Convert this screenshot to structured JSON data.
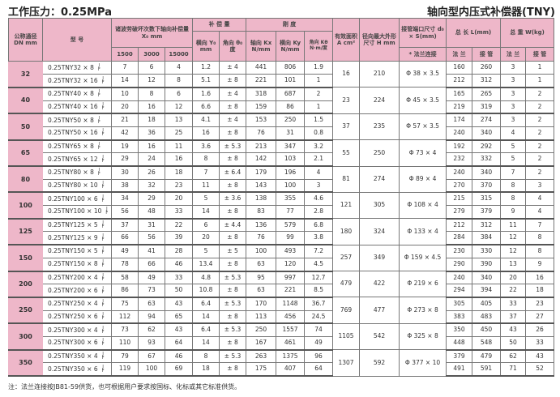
{
  "header": {
    "pressure": "工作压力：0.25MPa",
    "title": "轴向型内压式补偿器(TNY)"
  },
  "columns": {
    "dn": "公称通径 DN mm",
    "model": "型 号",
    "x0": "诸波劳破坏次数下轴向补偿量 X₀ mm",
    "x0_cycles": [
      "1500",
      "3000",
      "15000"
    ],
    "comp": "补 偿 量",
    "y0": "横向 Y₀ mm",
    "theta0": "角向 θ₀ 度",
    "stiff": "刚 度",
    "kx": "轴向 Kx N/mm",
    "ky": "横向 Ky N/mm",
    "ktheta": "角向 Kθ N·m/度",
    "area": "有效面积 A cm²",
    "h": "径向最大外形尺寸 H mm",
    "d0": "接管端口尺寸 d₀ × S(mm)",
    "d0_sub": "* 法兰连接",
    "length": "总 长 L(mm)",
    "weight": "总 重 W(kg)",
    "flange": "法 兰",
    "pipe": "接 管"
  },
  "suffix": {
    "top": "J",
    "bottom": "F"
  },
  "groups": [
    {
      "dn": "32",
      "area": "16",
      "h": "210",
      "d0": "Φ 38 × 3.5",
      "rows": [
        {
          "model": "0.25TNY32 × 8",
          "v": [
            "7",
            "6",
            "4",
            "1.2",
            "± 4",
            "441",
            "806",
            "1.9",
            "160",
            "260",
            "3",
            "1"
          ]
        },
        {
          "model": "0.25TNY32 × 16",
          "v": [
            "14",
            "12",
            "8",
            "5.1",
            "± 8",
            "221",
            "101",
            "1",
            "212",
            "312",
            "3",
            "1"
          ]
        }
      ]
    },
    {
      "dn": "40",
      "area": "23",
      "h": "224",
      "d0": "Φ 45 × 3.5",
      "rows": [
        {
          "model": "0.25TNY40 × 8",
          "v": [
            "10",
            "8",
            "6",
            "1.6",
            "± 4",
            "318",
            "687",
            "2",
            "165",
            "265",
            "3",
            "2"
          ]
        },
        {
          "model": "0.25TNY40 × 16",
          "v": [
            "20",
            "16",
            "12",
            "6.6",
            "± 8",
            "159",
            "86",
            "1",
            "219",
            "319",
            "3",
            "2"
          ]
        }
      ]
    },
    {
      "dn": "50",
      "area": "37",
      "h": "235",
      "d0": "Φ 57 × 3.5",
      "rows": [
        {
          "model": "0.25TNY50 × 8",
          "v": [
            "21",
            "18",
            "13",
            "4.1",
            "± 4",
            "153",
            "250",
            "1.5",
            "174",
            "274",
            "3",
            "2"
          ]
        },
        {
          "model": "0.25TNY50 × 16",
          "v": [
            "42",
            "36",
            "25",
            "16",
            "± 8",
            "76",
            "31",
            "0.8",
            "240",
            "340",
            "4",
            "2"
          ]
        }
      ]
    },
    {
      "dn": "65",
      "area": "55",
      "h": "250",
      "d0": "Φ 73 × 4",
      "rows": [
        {
          "model": "0.25TNY65 × 8",
          "v": [
            "19",
            "16",
            "11",
            "3.6",
            "± 5.3",
            "213",
            "347",
            "3.2",
            "192",
            "292",
            "5",
            "2"
          ]
        },
        {
          "model": "0.25TNY65 × 12",
          "v": [
            "29",
            "24",
            "16",
            "8",
            "± 8",
            "142",
            "103",
            "2.1",
            "232",
            "332",
            "5",
            "2"
          ]
        }
      ]
    },
    {
      "dn": "80",
      "area": "81",
      "h": "274",
      "d0": "Φ 89 × 4",
      "rows": [
        {
          "model": "0.25TNY80 × 8",
          "v": [
            "30",
            "26",
            "18",
            "7",
            "± 6.4",
            "179",
            "196",
            "4",
            "240",
            "340",
            "7",
            "2"
          ]
        },
        {
          "model": "0.25TNY80 × 10",
          "v": [
            "38",
            "32",
            "23",
            "11",
            "± 8",
            "143",
            "100",
            "3",
            "270",
            "370",
            "8",
            "3"
          ]
        }
      ]
    },
    {
      "dn": "100",
      "area": "121",
      "h": "305",
      "d0": "Φ 108 × 4",
      "rows": [
        {
          "model": "0.25TNY100 × 6",
          "v": [
            "34",
            "29",
            "20",
            "5",
            "± 3.6",
            "138",
            "355",
            "4.6",
            "215",
            "315",
            "8",
            "4"
          ]
        },
        {
          "model": "0.25TNY100 × 10",
          "v": [
            "56",
            "48",
            "33",
            "14",
            "± 8",
            "83",
            "77",
            "2.8",
            "279",
            "379",
            "9",
            "4"
          ]
        }
      ]
    },
    {
      "dn": "125",
      "area": "180",
      "h": "324",
      "d0": "Φ 133 × 4",
      "rows": [
        {
          "model": "0.25TNY125 × 5",
          "v": [
            "37",
            "31",
            "22",
            "6",
            "± 4.4",
            "136",
            "579",
            "6.8",
            "212",
            "312",
            "11",
            "7"
          ]
        },
        {
          "model": "0.25TNY125 × 9",
          "v": [
            "66",
            "56",
            "39",
            "20",
            "± 8",
            "76",
            "99",
            "3.8",
            "284",
            "384",
            "12",
            "8"
          ]
        }
      ]
    },
    {
      "dn": "150",
      "area": "257",
      "h": "349",
      "d0": "Φ 159 × 4.5",
      "rows": [
        {
          "model": "0.25TNY150 × 5",
          "v": [
            "49",
            "41",
            "28",
            "5",
            "± 5",
            "100",
            "493",
            "7.2",
            "230",
            "330",
            "12",
            "8"
          ]
        },
        {
          "model": "0.25TNY150 × 8",
          "v": [
            "78",
            "66",
            "46",
            "13.4",
            "± 8",
            "63",
            "120",
            "4.5",
            "290",
            "390",
            "13",
            "9"
          ]
        }
      ]
    },
    {
      "dn": "200",
      "area": "479",
      "h": "422",
      "d0": "Φ 219 × 6",
      "rows": [
        {
          "model": "0.25TNY200 × 4",
          "v": [
            "58",
            "49",
            "33",
            "4.8",
            "± 5.3",
            "95",
            "997",
            "12.7",
            "240",
            "340",
            "20",
            "16"
          ]
        },
        {
          "model": "0.25TNY200 × 6",
          "v": [
            "86",
            "73",
            "50",
            "10.8",
            "± 8",
            "63",
            "221",
            "8.5",
            "294",
            "394",
            "22",
            "18"
          ]
        }
      ]
    },
    {
      "dn": "250",
      "area": "769",
      "h": "477",
      "d0": "Φ 273 × 8",
      "rows": [
        {
          "model": "0.25TNY250 × 4",
          "v": [
            "75",
            "63",
            "43",
            "6.4",
            "± 5.3",
            "170",
            "1148",
            "36.7",
            "305",
            "405",
            "33",
            "23"
          ]
        },
        {
          "model": "0.25TNY250 × 6",
          "v": [
            "112",
            "94",
            "65",
            "14",
            "± 8",
            "113",
            "456",
            "24.5",
            "383",
            "483",
            "37",
            "27"
          ]
        }
      ]
    },
    {
      "dn": "300",
      "area": "1105",
      "h": "542",
      "d0": "Φ 325 × 8",
      "rows": [
        {
          "model": "0.25TNY300 × 4",
          "v": [
            "73",
            "62",
            "43",
            "6.4",
            "± 5.3",
            "250",
            "1557",
            "74",
            "350",
            "450",
            "43",
            "26"
          ]
        },
        {
          "model": "0.25TNY300 × 6",
          "v": [
            "110",
            "93",
            "64",
            "14",
            "± 8",
            "167",
            "461",
            "49",
            "448",
            "548",
            "50",
            "33"
          ]
        }
      ]
    },
    {
      "dn": "350",
      "area": "1307",
      "h": "592",
      "d0": "Φ 377 × 10",
      "rows": [
        {
          "model": "0.25TNY350 × 4",
          "v": [
            "79",
            "67",
            "46",
            "8",
            "± 5.3",
            "263",
            "1375",
            "96",
            "379",
            "479",
            "62",
            "43"
          ]
        },
        {
          "model": "0.25TNY350 × 6",
          "v": [
            "119",
            "100",
            "69",
            "18",
            "± 8",
            "175",
            "407",
            "64",
            "491",
            "591",
            "71",
            "52"
          ]
        }
      ]
    }
  ],
  "note": "注：法兰连接按JB81-59供货，也可根据用户要求按国标、化标或其它标准供货。"
}
